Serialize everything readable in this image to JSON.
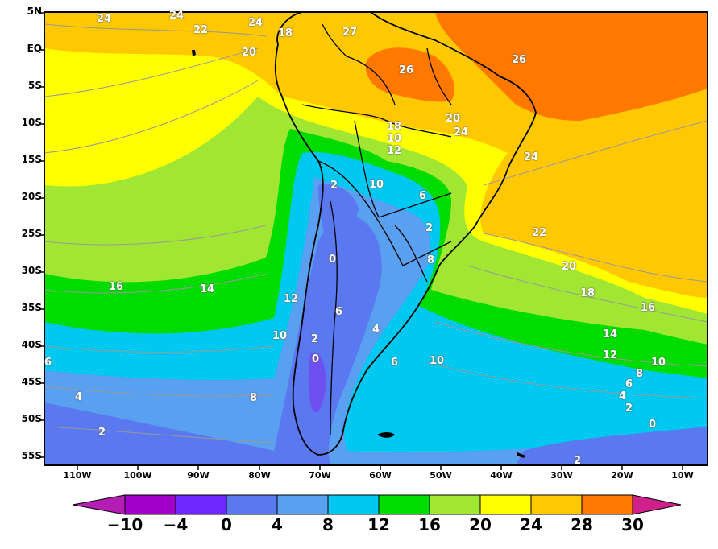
{
  "map": {
    "lat_labels": [
      "5N",
      "EQ",
      "5S",
      "10S",
      "15S",
      "20S",
      "25S",
      "30S",
      "35S",
      "40S",
      "45S",
      "50S",
      "55S"
    ],
    "lon_labels": [
      "110W",
      "100W",
      "90W",
      "80W",
      "70W",
      "60W",
      "50W",
      "40W",
      "30W",
      "20W",
      "10W"
    ],
    "contour_labels": [
      "24",
      "24",
      "24",
      "22",
      "20",
      "18",
      "27",
      "26",
      "26",
      "18",
      "10",
      "12",
      "20",
      "24",
      "24",
      "22",
      "20",
      "18",
      "16",
      "16",
      "14",
      "12",
      "10",
      "6",
      "4",
      "2",
      "10",
      "6",
      "2",
      "2",
      "8",
      "0",
      "6",
      "4",
      "2",
      "0",
      "6",
      "10",
      "14",
      "12",
      "10",
      "8",
      "6",
      "4",
      "2",
      "0",
      "8",
      "2"
    ]
  },
  "colorbar": {
    "labels": [
      "−10",
      "−4",
      "0",
      "4",
      "8",
      "12",
      "16",
      "20",
      "24",
      "28",
      "30"
    ],
    "colors": [
      "#a000c8",
      "#6e28ff",
      "#5a78f0",
      "#5aa0f0",
      "#00c8f0",
      "#00dc00",
      "#a0e632",
      "#ffff00",
      "#ffc800",
      "#ff7800",
      "#ff0000"
    ],
    "under_color": "#b41eb4",
    "over_color": "#d0208c"
  },
  "legend_colors": {
    "land_outline": "#000000",
    "contour_line": "#999999"
  }
}
